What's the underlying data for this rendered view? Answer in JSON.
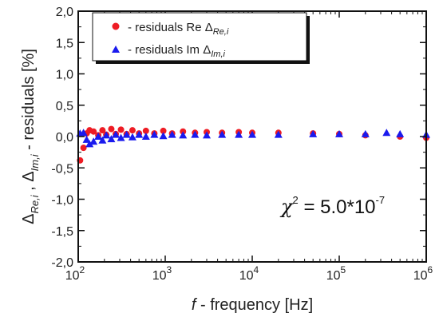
{
  "chart_data": {
    "type": "scatter",
    "x_scale": "log",
    "xlim": [
      100,
      1000000
    ],
    "ylim": [
      -2.0,
      2.0
    ],
    "x_ticks": [
      100,
      1000,
      10000,
      100000,
      1000000
    ],
    "x_tick_labels": [
      {
        "base": "10",
        "exp": "2"
      },
      {
        "base": "10",
        "exp": "3"
      },
      {
        "base": "10",
        "exp": "4"
      },
      {
        "base": "10",
        "exp": "5"
      },
      {
        "base": "10",
        "exp": "6"
      }
    ],
    "y_ticks": [
      -2.0,
      -1.5,
      -1.0,
      -0.5,
      0.0,
      0.5,
      1.0,
      1.5,
      2.0
    ],
    "y_tick_labels": [
      "-2,0",
      "-1,5",
      "-1,0",
      "-0,5",
      "0,0",
      "0,5",
      "1,0",
      "1,5",
      "2,0"
    ],
    "xlabel": {
      "italic": "f",
      "text": " - frequency [Hz]"
    },
    "ylabel": {
      "part1": "Δ",
      "sub1": "Re,i",
      "part2": " , Δ",
      "sub2": "Im,i",
      "part3": " - residuals [%]"
    },
    "legend_position": "top-left",
    "series": [
      {
        "name": "residuals Re",
        "legend_label": "-  residuals Re Δ",
        "legend_sub": "Re,i",
        "color": "#ee1c24",
        "marker": "circle",
        "x": [
          105,
          115,
          125,
          135,
          150,
          170,
          190,
          210,
          240,
          270,
          310,
          360,
          420,
          500,
          600,
          750,
          950,
          1200,
          1600,
          2200,
          3000,
          4500,
          7000,
          10000,
          20000,
          50000,
          100000,
          200000,
          500000,
          1000000
        ],
        "values": [
          -0.38,
          -0.18,
          0.05,
          0.1,
          0.08,
          0.02,
          0.1,
          0.03,
          0.12,
          0.04,
          0.11,
          0.04,
          0.1,
          0.05,
          0.09,
          0.05,
          0.09,
          0.05,
          0.08,
          0.06,
          0.07,
          0.06,
          0.07,
          0.06,
          0.06,
          0.05,
          0.04,
          0.02,
          0.0,
          -0.02
        ]
      },
      {
        "name": "residuals Im",
        "legend_label": "-  residuals Im Δ",
        "legend_sub": "Im,i",
        "color": "#1a1aee",
        "marker": "triangle",
        "x": [
          105,
          115,
          125,
          135,
          150,
          170,
          190,
          210,
          240,
          270,
          310,
          360,
          420,
          500,
          600,
          750,
          950,
          1200,
          1600,
          2200,
          3000,
          4500,
          7000,
          10000,
          20000,
          50000,
          100000,
          200000,
          350000,
          500000,
          1000000
        ],
        "values": [
          0.05,
          0.06,
          -0.05,
          -0.12,
          -0.08,
          0.0,
          -0.06,
          0.02,
          -0.04,
          0.03,
          -0.02,
          0.03,
          -0.01,
          0.03,
          0.0,
          0.03,
          0.01,
          0.03,
          0.02,
          0.03,
          0.02,
          0.03,
          0.03,
          0.03,
          0.03,
          0.04,
          0.04,
          0.04,
          0.06,
          0.04,
          0.03
        ]
      }
    ],
    "annotations": [
      {
        "symbol": "χ",
        "exp": "2",
        "text": " = 5.0*10",
        "text_exp": "-7"
      }
    ]
  }
}
